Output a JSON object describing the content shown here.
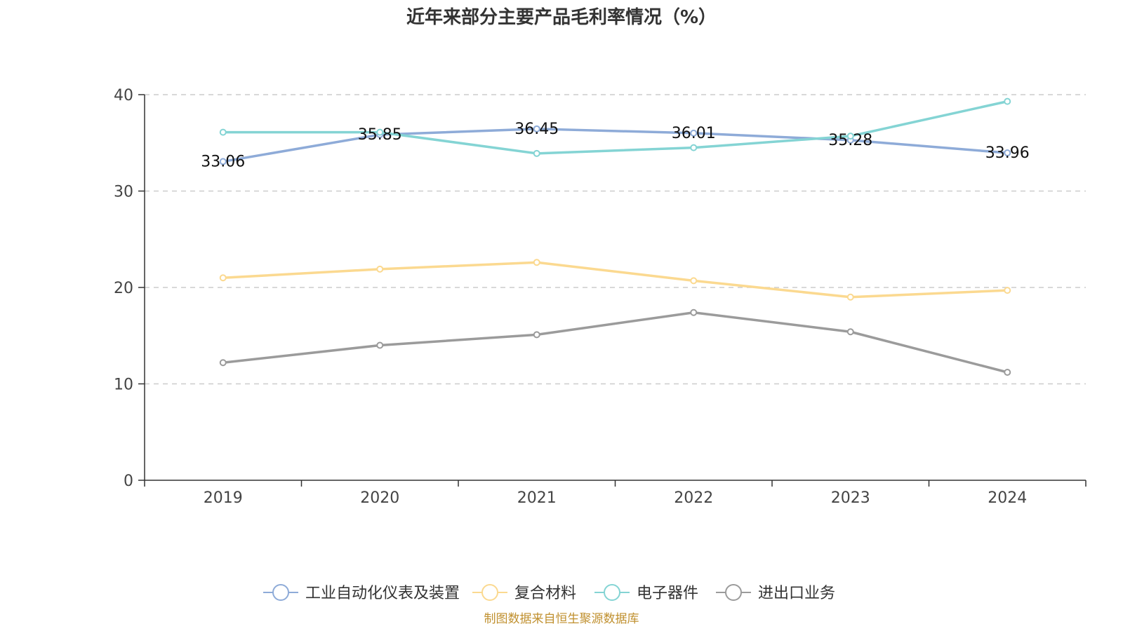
{
  "chart_data": {
    "type": "line",
    "title": "近年来部分主要产品毛利率情况（%）",
    "categories": [
      "2019",
      "2020",
      "2021",
      "2022",
      "2023",
      "2024"
    ],
    "ylim": [
      0,
      40
    ],
    "yticks": [
      "0",
      "10",
      "20",
      "30",
      "40"
    ],
    "grid": true,
    "legend_position": "bottom",
    "series": [
      {
        "name": "工业自动化仪表及装置",
        "color": "#8eabd8",
        "values": [
          33.06,
          35.85,
          36.45,
          36.01,
          35.28,
          33.96
        ],
        "labels": [
          "33.06",
          "35.85",
          "36.45",
          "36.01",
          "35.28",
          "33.96"
        ]
      },
      {
        "name": "复合材料",
        "color": "#fbd990",
        "values": [
          21.0,
          21.9,
          22.6,
          20.7,
          19.0,
          19.7
        ]
      },
      {
        "name": "电子器件",
        "color": "#84d4d4",
        "values": [
          36.1,
          36.1,
          33.9,
          34.5,
          35.7,
          39.3
        ]
      },
      {
        "name": "进出口业务",
        "color": "#9b9b9b",
        "values": [
          12.2,
          14.0,
          15.1,
          17.4,
          15.4,
          11.2
        ]
      }
    ]
  },
  "source": "制图数据来自恒生聚源数据库"
}
